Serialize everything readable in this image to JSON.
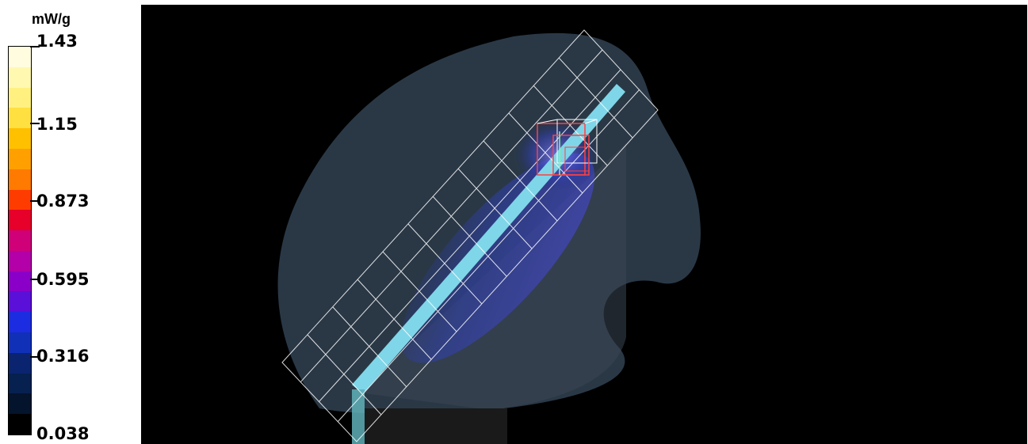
{
  "legend": {
    "unit": "mW/g",
    "ticks": [
      "1.43",
      "1.15",
      "0.873",
      "0.595",
      "0.316",
      "0.038"
    ],
    "swatch_colors": [
      "#fffce0",
      "#fff8b0",
      "#fff080",
      "#ffe040",
      "#ffc000",
      "#ff9f00",
      "#ff7a00",
      "#ff3c00",
      "#e6002a",
      "#d00078",
      "#b400a8",
      "#8a00c8",
      "#5a10d8",
      "#1c2ce0",
      "#1030b8",
      "#0a2470",
      "#062050",
      "#04142c",
      "#000000"
    ]
  },
  "viewport": {
    "colors": {
      "background": "#000000",
      "phantom": "#2a3846",
      "grid": "#ffffff",
      "dipole": "#7fd6e8",
      "hotspot": "#e02020"
    }
  }
}
